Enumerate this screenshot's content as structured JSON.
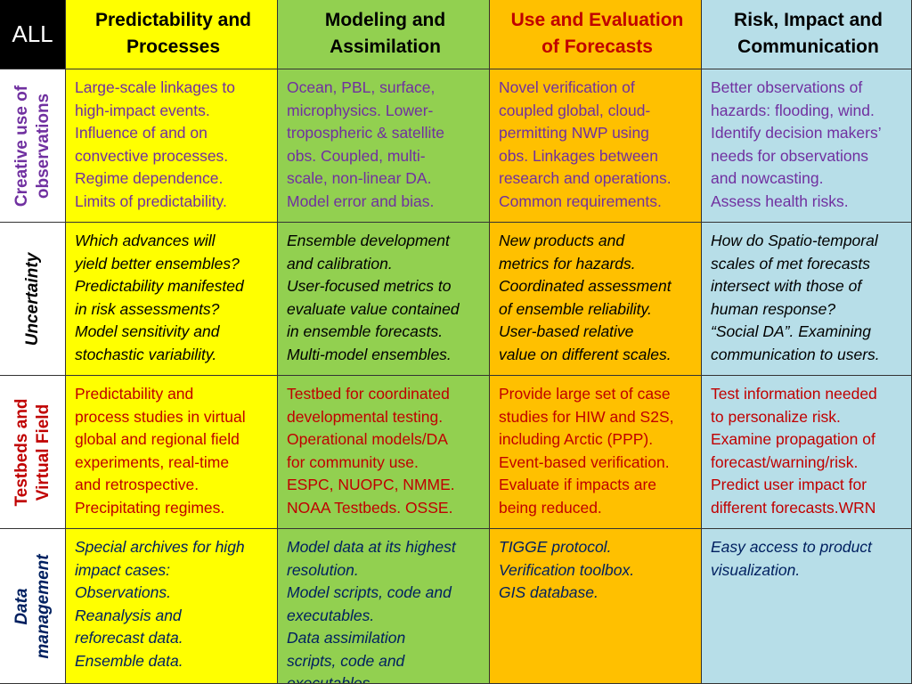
{
  "corner_label": "ALL",
  "columns": [
    {
      "line1": "Predictability and",
      "line2": "Processes"
    },
    {
      "line1": "Modeling and",
      "line2": "Assimilation"
    },
    {
      "line1": "Use and Evaluation",
      "line2": "of Forecasts"
    },
    {
      "line1": "Risk, Impact and",
      "line2": "Communication"
    }
  ],
  "rows": [
    {
      "label_lines": [
        "Creative use of",
        "observations"
      ],
      "cells": [
        [
          "Large-scale linkages to",
          "high-impact events.",
          "Influence of and on",
          "convective processes.",
          "Regime dependence.",
          "Limits of predictability."
        ],
        [
          "Ocean, PBL, surface,",
          "microphysics.  Lower-",
          "tropospheric & satellite",
          "obs.  Coupled, multi-",
          "scale, non-linear DA.",
          "Model error and bias."
        ],
        [
          "Novel verification of",
          "coupled global, cloud-",
          "permitting NWP using",
          "obs.  Linkages between",
          "research and operations.",
          "Common requirements."
        ],
        [
          "Better observations of",
          "hazards: flooding, wind.",
          "Identify decision makers’",
          "needs for observations",
          "and nowcasting.",
          "Assess health risks."
        ]
      ]
    },
    {
      "label_lines": [
        "Uncertainty"
      ],
      "cells": [
        [
          "Which advances will",
          "yield better ensembles?",
          "Predictability manifested",
          "in risk assessments?",
          "Model sensitivity and",
          "stochastic variability."
        ],
        [
          "Ensemble development",
          "and calibration.",
          "User-focused metrics to",
          "evaluate value contained",
          "in ensemble forecasts.",
          "Multi-model ensembles."
        ],
        [
          "New products and",
          "metrics for hazards.",
          "Coordinated assessment",
          "of ensemble reliability.",
          "User-based relative",
          "value on different scales."
        ],
        [
          "How do Spatio-temporal",
          "scales of met forecasts",
          "intersect with those of",
          "human response?",
          "“Social DA”.  Examining",
          "communication to users."
        ]
      ]
    },
    {
      "label_lines": [
        "Testbeds and",
        "Virtual Field"
      ],
      "cells": [
        [
          "Predictability and",
          "process studies in virtual",
          "global and regional field",
          "experiments, real-time",
          "and retrospective.",
          "Precipitating regimes."
        ],
        [
          "Testbed for coordinated",
          "developmental testing.",
          "Operational models/DA",
          "for community use.",
          "ESPC, NUOPC, NMME.",
          "NOAA Testbeds.  OSSE."
        ],
        [
          "Provide large set of case",
          "studies for HIW and S2S,",
          "including Arctic (PPP).",
          "Event-based verification.",
          "Evaluate if impacts are",
          "being reduced."
        ],
        [
          "Test information needed",
          "to personalize risk.",
          "Examine propagation of",
          "forecast/warning/risk.",
          "Predict user impact for",
          "different forecasts.WRN"
        ]
      ]
    },
    {
      "label_lines": [
        "Data",
        "management"
      ],
      "cells": [
        [
          "Special archives for high",
          "impact cases:",
          "Observations.",
          "Reanalysis and",
          "reforecast data.",
          "Ensemble data."
        ],
        [
          "Model data at its highest",
          "resolution.",
          "Model scripts, code and",
          "executables.",
          "Data assimilation",
          "scripts, code and",
          "executables"
        ],
        [
          "TIGGE protocol.",
          "Verification toolbox.",
          "GIS database."
        ],
        [
          "Easy access to product",
          "visualization."
        ]
      ]
    }
  ]
}
